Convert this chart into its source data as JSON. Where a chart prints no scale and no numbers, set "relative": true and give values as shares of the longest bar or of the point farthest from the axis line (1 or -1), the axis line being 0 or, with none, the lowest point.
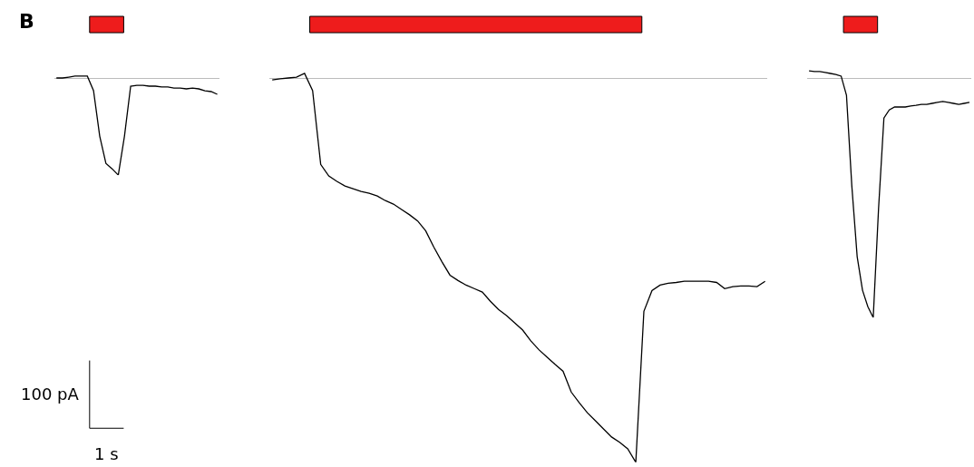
{
  "chart_data": [
    {
      "type": "line",
      "title": "B",
      "relative": true,
      "annotations": [
        "100 pA",
        "1 s"
      ],
      "categories": [
        null,
        null,
        null,
        null,
        null,
        null,
        null,
        null,
        null,
        null,
        null,
        null,
        null,
        null,
        null,
        null,
        null,
        null,
        null,
        null,
        null,
        null,
        null,
        null,
        null,
        null,
        null
      ],
      "series": [
        {
          "color": "#000000",
          "values": [
            0,
            0,
            0.009,
            0.019,
            0.019,
            0.019,
            -0.131,
            -0.598,
            -0.879,
            -0.935,
            -1,
            -0.598,
            -0.084,
            -0.075,
            -0.075,
            -0.084,
            -0.084,
            -0.093,
            -0.093,
            -0.103,
            -0.103,
            -0.112,
            -0.103,
            -0.112,
            -0.131,
            -0.14,
            -0.168
          ]
        }
      ]
    },
    {
      "type": "line",
      "relative": true,
      "categories": [
        null,
        null,
        null,
        null,
        null,
        null,
        null,
        null,
        null,
        null,
        null,
        null,
        null,
        null,
        null,
        null,
        null,
        null,
        null,
        null,
        null,
        null,
        null,
        null,
        null,
        null,
        null,
        null,
        null,
        null,
        null,
        null,
        null,
        null,
        null,
        null,
        null,
        null,
        null,
        null,
        null,
        null,
        null,
        null,
        null,
        null,
        null,
        null,
        null,
        null,
        null,
        null,
        null,
        null,
        null,
        null,
        null,
        null,
        null,
        null,
        null,
        null
      ],
      "series": [
        {
          "color": "#000000",
          "values": [
            -0.005,
            -0.002,
            0,
            0.002,
            0.012,
            -0.033,
            -0.225,
            -0.255,
            -0.269,
            -0.281,
            -0.288,
            -0.295,
            -0.3,
            -0.307,
            -0.319,
            -0.328,
            -0.342,
            -0.356,
            -0.372,
            -0.398,
            -0.44,
            -0.478,
            -0.513,
            -0.527,
            -0.539,
            -0.548,
            -0.557,
            -0.581,
            -0.602,
            -0.618,
            -0.637,
            -0.656,
            -0.684,
            -0.707,
            -0.726,
            -0.745,
            -0.763,
            -0.817,
            -0.845,
            -0.871,
            -0.892,
            -0.913,
            -0.934,
            -0.948,
            -0.965,
            -1,
            -0.607,
            -0.553,
            -0.539,
            -0.534,
            -0.532,
            -0.529,
            -0.529,
            -0.529,
            -0.529,
            -0.532,
            -0.548,
            -0.543,
            -0.541,
            -0.541,
            -0.543,
            -0.529
          ]
        }
      ]
    },
    {
      "type": "line",
      "relative": true,
      "categories": [
        null,
        null,
        null,
        null,
        null,
        null,
        null,
        null,
        null,
        null,
        null,
        null,
        null,
        null,
        null,
        null,
        null,
        null,
        null,
        null,
        null,
        null,
        null,
        null,
        null,
        null,
        null,
        null,
        null,
        null,
        null
      ],
      "series": [
        {
          "color": "#000000",
          "values": [
            0.03,
            0.027,
            0.027,
            0.023,
            0.019,
            0.015,
            0.008,
            -0.072,
            -0.451,
            -0.746,
            -0.886,
            -0.955,
            -1,
            -0.545,
            -0.167,
            -0.133,
            -0.121,
            -0.121,
            -0.121,
            -0.117,
            -0.114,
            -0.11,
            -0.11,
            -0.106,
            -0.102,
            -0.098,
            -0.102,
            -0.106,
            -0.11,
            -0.106,
            -0.102
          ]
        }
      ]
    }
  ]
}
